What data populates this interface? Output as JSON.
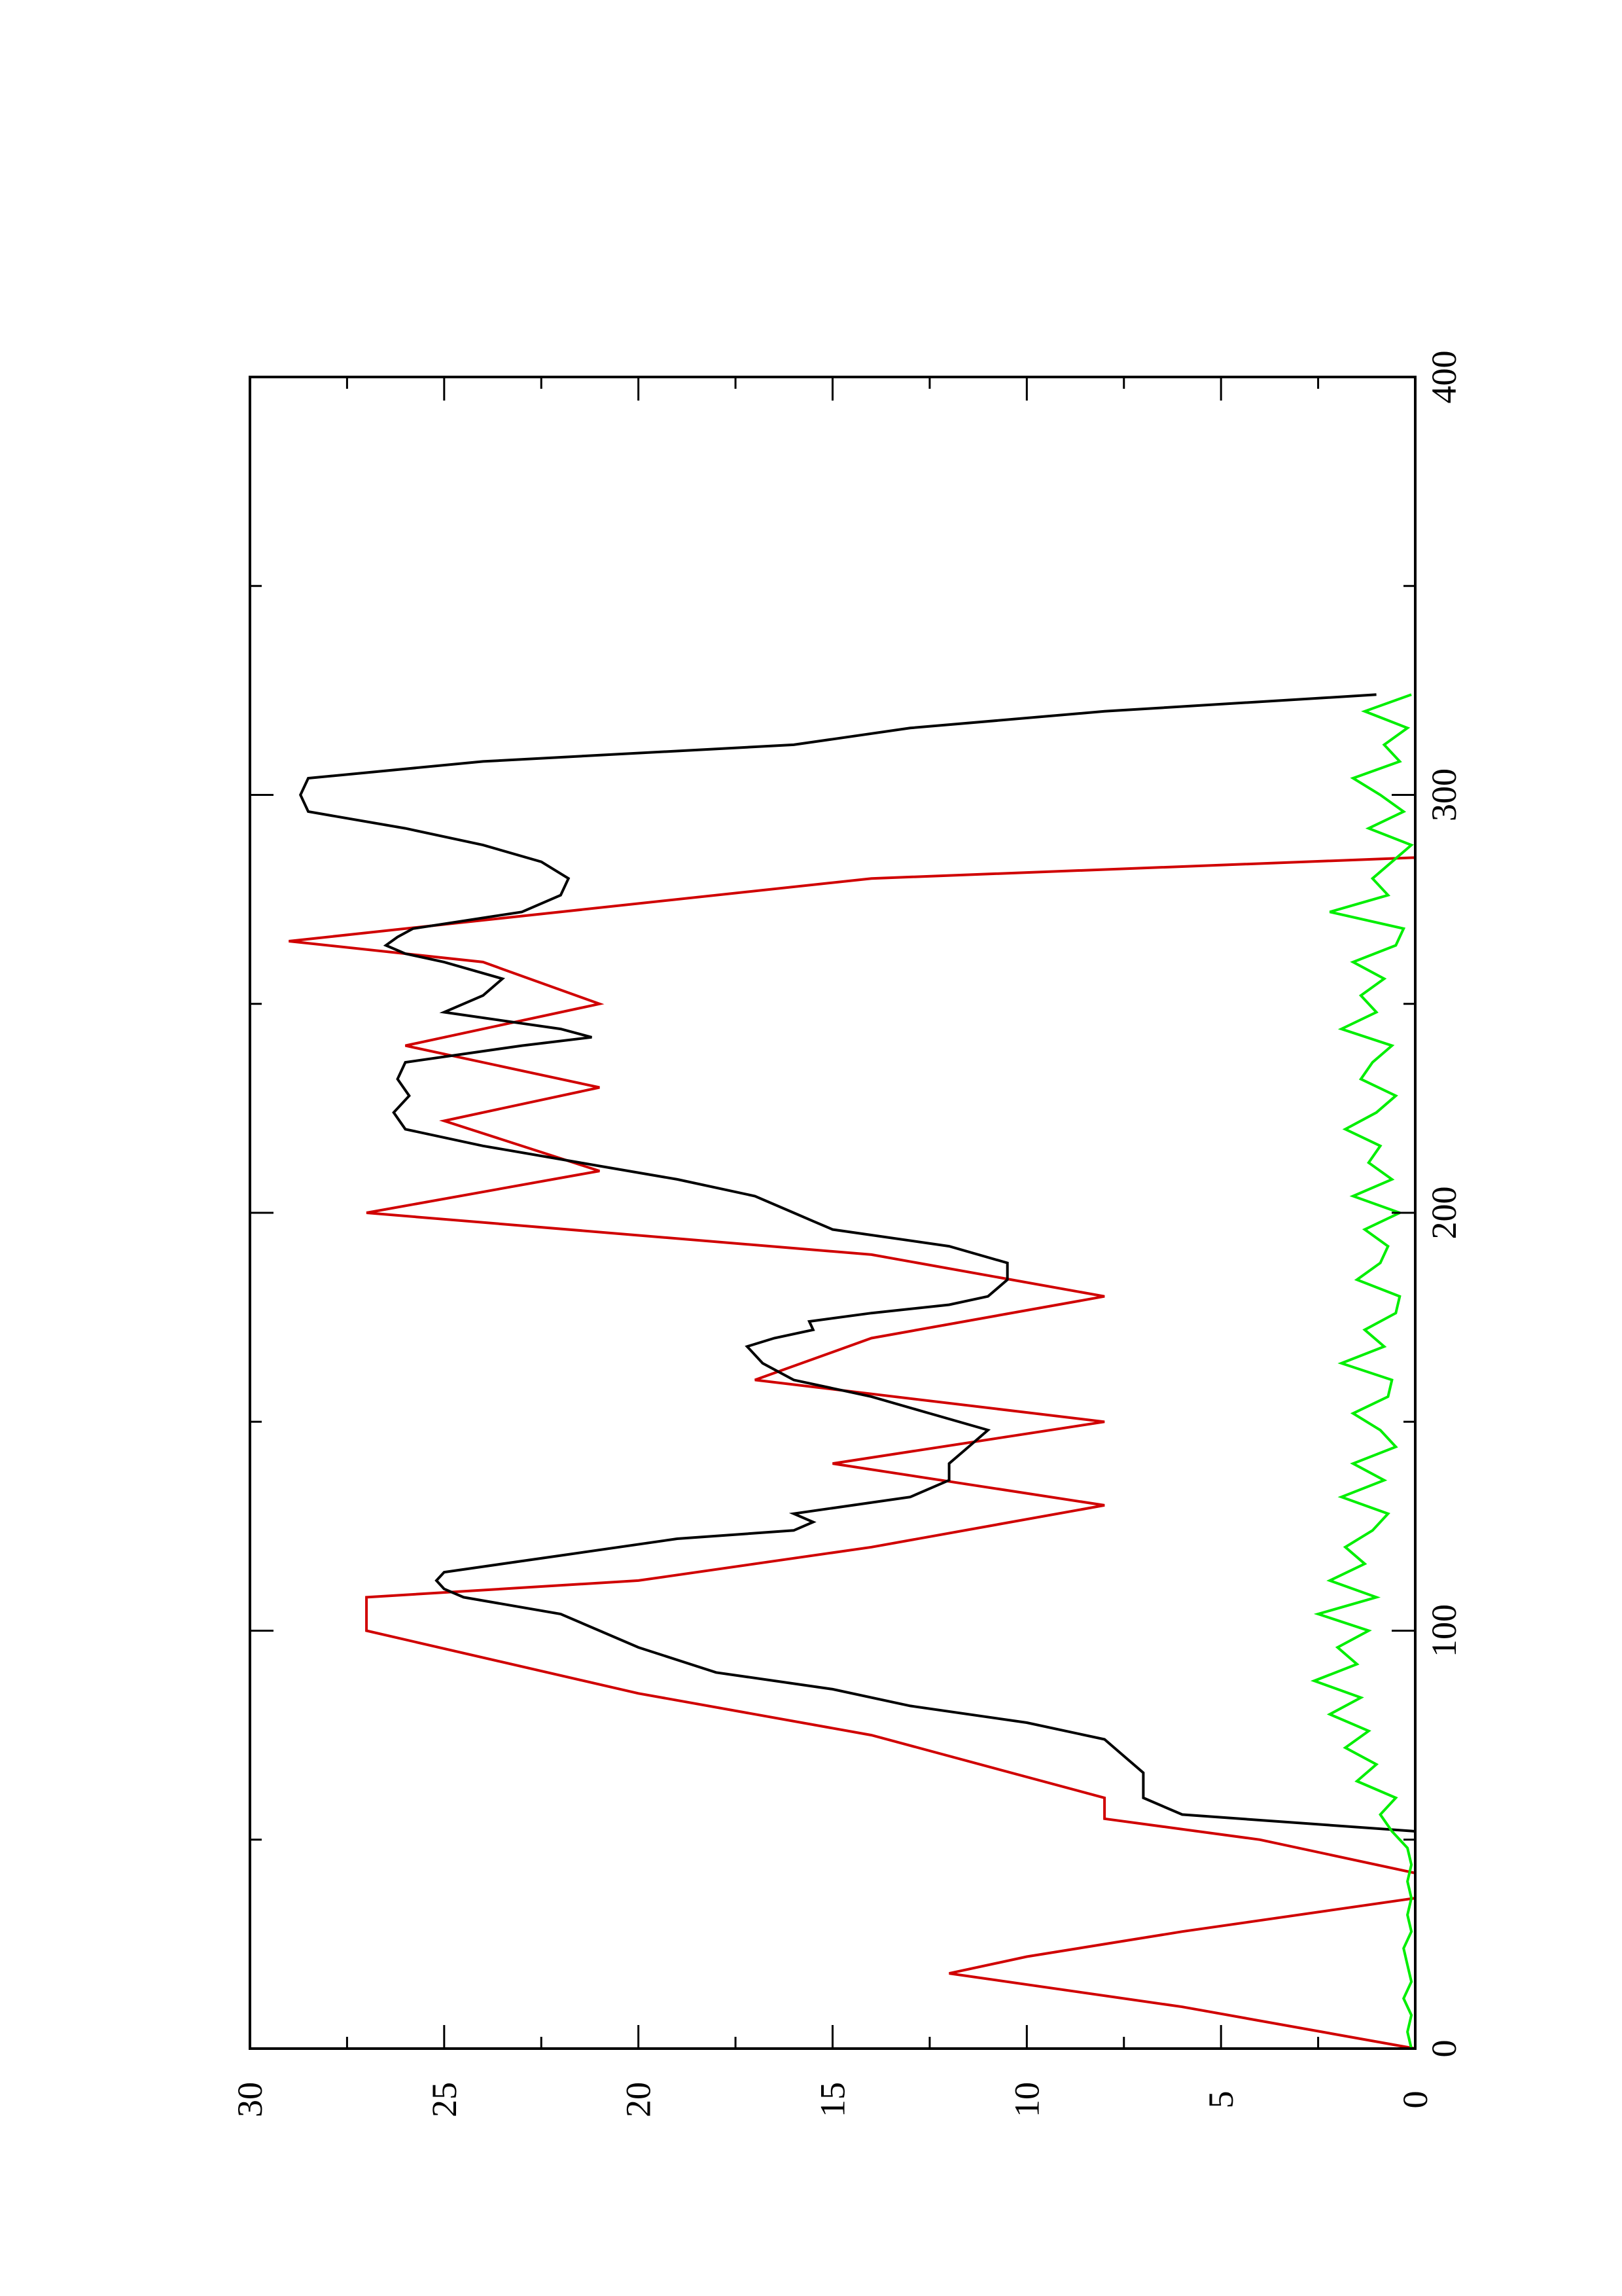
{
  "chart_data": {
    "type": "line",
    "title": "",
    "xlabel": "",
    "ylabel": "",
    "orientation": "rotated-90-ccw",
    "xlim": [
      0,
      400
    ],
    "ylim": [
      0,
      30
    ],
    "x_ticks": [
      0,
      100,
      200,
      300,
      400
    ],
    "x_tick_labels": [
      "0",
      "100",
      "200",
      "300",
      "400"
    ],
    "y_ticks": [
      0,
      5,
      10,
      15,
      20,
      25,
      30
    ],
    "y_tick_labels": [
      "0",
      "5",
      "10",
      "15",
      "20",
      "25",
      "30"
    ],
    "grid": false,
    "legend": "none",
    "series": [
      {
        "color": "#d00000",
        "x": [
          0,
          10,
          10,
          18,
          18,
          22,
          22,
          28,
          28,
          36,
          36,
          42,
          42,
          50,
          50,
          55,
          55,
          60,
          60,
          75,
          75,
          85,
          85,
          100,
          100,
          108,
          108,
          112,
          112,
          120,
          120,
          130,
          130,
          140,
          140,
          150,
          150,
          160,
          160,
          170,
          170,
          180,
          180,
          190,
          190,
          200,
          200,
          210,
          210,
          222,
          222,
          230,
          230,
          240,
          240,
          250,
          250,
          260,
          260,
          265,
          265,
          270,
          270,
          280,
          280,
          285,
          285,
          290,
          290,
          296,
          296,
          305,
          305,
          310,
          310,
          320,
          320,
          324
        ],
        "y": [
          0,
          6,
          6,
          12,
          12,
          10,
          10,
          6,
          6,
          0,
          0,
          0,
          0,
          4,
          4,
          8,
          8,
          8,
          8,
          14,
          14,
          20,
          20,
          27,
          27,
          27,
          27,
          20,
          20,
          14,
          14,
          8,
          8,
          15,
          15,
          8,
          8,
          17,
          17,
          14,
          14,
          8,
          8,
          14,
          14,
          27,
          27,
          21,
          21,
          25,
          25,
          21,
          21,
          26,
          26,
          21,
          21,
          24,
          24,
          29,
          29,
          24,
          24,
          14,
          14,
          0,
          0,
          0,
          0,
          0,
          0,
          0,
          0,
          0,
          0,
          0,
          0,
          0
        ]
      },
      {
        "color": "#000000",
        "x": [
          0,
          10,
          18,
          22,
          28,
          36,
          42,
          48,
          52,
          56,
          60,
          66,
          70,
          74,
          78,
          82,
          86,
          90,
          96,
          100,
          104,
          108,
          110,
          112,
          114,
          118,
          122,
          124,
          126,
          128,
          132,
          136,
          140,
          144,
          148,
          152,
          156,
          160,
          164,
          168,
          170,
          172,
          174,
          176,
          178,
          180,
          184,
          188,
          192,
          196,
          198,
          200,
          204,
          208,
          212,
          216,
          220,
          224,
          228,
          232,
          236,
          240,
          242,
          244,
          248,
          252,
          256,
          260,
          262,
          264,
          266,
          268,
          272,
          276,
          280,
          284,
          288,
          292,
          296,
          300,
          304,
          308,
          312,
          316,
          320,
          324
        ],
        "y": [
          0,
          0,
          0,
          0,
          0,
          0,
          0,
          0,
          0,
          6,
          7,
          7,
          7.5,
          8,
          10,
          13,
          15,
          18,
          20,
          21,
          22,
          24.5,
          25,
          25.2,
          25,
          22,
          19,
          16,
          15.5,
          16,
          13,
          12,
          12,
          11.5,
          11,
          12.5,
          14,
          16,
          16.8,
          17.2,
          16.5,
          15.5,
          15.6,
          14,
          12,
          11,
          10.5,
          10.5,
          12,
          15,
          15.5,
          16,
          17,
          19,
          21.5,
          24,
          26,
          26.3,
          25.9,
          26.2,
          26,
          23,
          21.2,
          22,
          25,
          24,
          23.5,
          25,
          26,
          26.5,
          26.2,
          25.8,
          23,
          22,
          21.8,
          22.5,
          24,
          26,
          28.5,
          28.7,
          28.5,
          24,
          16,
          13,
          8,
          1
        ]
      },
      {
        "color": "#00ee00",
        "x": [
          0,
          4,
          8,
          12,
          16,
          20,
          24,
          28,
          32,
          36,
          40,
          44,
          48,
          52,
          56,
          60,
          64,
          68,
          72,
          76,
          80,
          84,
          88,
          92,
          96,
          100,
          104,
          108,
          112,
          116,
          120,
          124,
          128,
          132,
          136,
          140,
          144,
          148,
          152,
          156,
          160,
          164,
          168,
          172,
          176,
          180,
          184,
          188,
          192,
          196,
          200,
          204,
          208,
          212,
          216,
          220,
          224,
          228,
          232,
          236,
          240,
          244,
          248,
          252,
          256,
          260,
          264,
          268,
          272,
          276,
          280,
          284,
          288,
          292,
          296,
          300,
          304,
          308,
          312,
          316,
          320,
          324
        ],
        "y": [
          0.1,
          0.2,
          0.1,
          0.3,
          0.1,
          0.2,
          0.3,
          0.1,
          0.2,
          0.1,
          0.2,
          0.1,
          0.2,
          0.6,
          0.9,
          0.5,
          1.5,
          1.0,
          1.8,
          1.2,
          2.2,
          1.4,
          2.6,
          1.5,
          2.0,
          1.2,
          2.5,
          1.0,
          2.2,
          1.3,
          1.8,
          1.1,
          0.7,
          1.9,
          0.8,
          1.6,
          0.5,
          0.9,
          1.6,
          0.7,
          0.6,
          1.9,
          0.8,
          1.3,
          0.5,
          0.4,
          1.5,
          0.9,
          0.7,
          1.3,
          0.4,
          1.6,
          0.6,
          1.2,
          0.9,
          1.8,
          1.0,
          0.5,
          1.4,
          1.1,
          0.6,
          1.9,
          1.0,
          1.4,
          0.8,
          1.6,
          0.5,
          0.3,
          2.2,
          0.7,
          1.1,
          0.6,
          0.1,
          1.2,
          0.3,
          0.9,
          1.6,
          0.4,
          0.8,
          0.2,
          1.3,
          0.1
        ]
      }
    ]
  }
}
